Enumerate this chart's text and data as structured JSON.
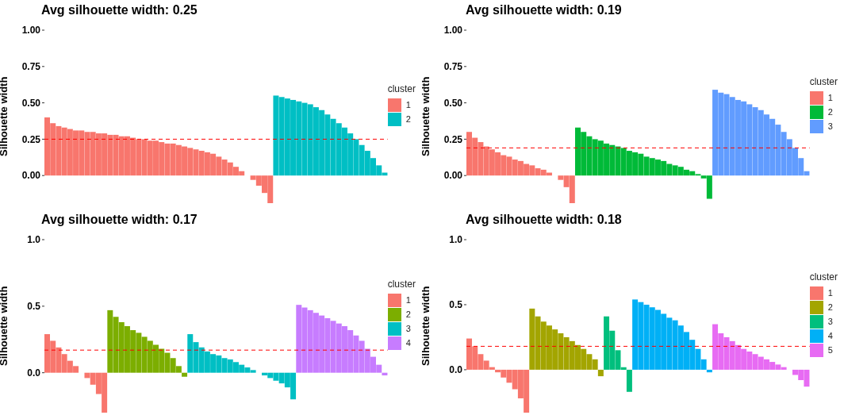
{
  "chart_data": [
    {
      "type": "bar",
      "title": "Avg silhouette width: 0.25",
      "ylabel": "Silhouette width",
      "legend_title": "cluster",
      "legend": "right",
      "tick_labels": "y",
      "categories": [
        null,
        null,
        null,
        null,
        null,
        null,
        null,
        null,
        null,
        null,
        null,
        null,
        null,
        null,
        null,
        null,
        null,
        null,
        null,
        null,
        null,
        null,
        null,
        null,
        null,
        null,
        null,
        null,
        null,
        null,
        null,
        null,
        null,
        null,
        null,
        null,
        null,
        null,
        null,
        null,
        null,
        null,
        null,
        null,
        null,
        null,
        null,
        null,
        null,
        null,
        null,
        null,
        null,
        null,
        null,
        null,
        null,
        null,
        null,
        null
      ],
      "ylim": [
        -0.19,
        1.0
      ],
      "yticks": [
        {
          "value": 0,
          "label": "0.00"
        },
        {
          "value": 0.25,
          "label": "0.25"
        },
        {
          "value": 0.5,
          "label": "0.50"
        },
        {
          "value": 0.75,
          "label": "0.75"
        },
        {
          "value": 1,
          "label": "1.00"
        }
      ],
      "ref_lines": [
        {
          "axis": "y",
          "value": 0.25,
          "color": "#ff0000",
          "line_style": "dashed"
        }
      ],
      "series": [
        {
          "name": "1",
          "color": "#f8766d",
          "values": [
            0.4,
            0.36,
            0.34,
            0.33,
            0.32,
            0.31,
            0.31,
            0.3,
            0.3,
            0.29,
            0.29,
            0.28,
            0.28,
            0.27,
            0.27,
            0.26,
            0.25,
            0.25,
            0.24,
            0.24,
            0.23,
            0.22,
            0.22,
            0.21,
            0.2,
            0.19,
            0.18,
            0.17,
            0.16,
            0.15,
            0.13,
            0.11,
            0.09,
            0.06,
            0.03,
            0.0,
            -0.03,
            -0.07,
            -0.12,
            -0.19,
            null,
            null,
            null,
            null,
            null,
            null,
            null,
            null,
            null,
            null,
            null,
            null,
            null,
            null,
            null,
            null,
            null,
            null,
            null,
            null
          ]
        },
        {
          "name": "2",
          "color": "#00bfc4",
          "values": [
            null,
            null,
            null,
            null,
            null,
            null,
            null,
            null,
            null,
            null,
            null,
            null,
            null,
            null,
            null,
            null,
            null,
            null,
            null,
            null,
            null,
            null,
            null,
            null,
            null,
            null,
            null,
            null,
            null,
            null,
            null,
            null,
            null,
            null,
            null,
            null,
            null,
            null,
            null,
            null,
            0.55,
            0.54,
            0.53,
            0.52,
            0.51,
            0.5,
            0.49,
            0.47,
            0.45,
            0.42,
            0.39,
            0.36,
            0.33,
            0.29,
            0.25,
            0.21,
            0.17,
            0.12,
            0.07,
            0.02
          ]
        }
      ]
    },
    {
      "type": "bar",
      "title": "Avg silhouette width: 0.19",
      "ylabel": "Silhouette width",
      "legend_title": "cluster",
      "legend": "right",
      "tick_labels": "y",
      "categories": [
        null,
        null,
        null,
        null,
        null,
        null,
        null,
        null,
        null,
        null,
        null,
        null,
        null,
        null,
        null,
        null,
        null,
        null,
        null,
        null,
        null,
        null,
        null,
        null,
        null,
        null,
        null,
        null,
        null,
        null,
        null,
        null,
        null,
        null,
        null,
        null,
        null,
        null,
        null,
        null,
        null,
        null,
        null,
        null,
        null,
        null,
        null,
        null,
        null,
        null,
        null,
        null,
        null,
        null,
        null,
        null,
        null,
        null,
        null,
        null
      ],
      "ylim": [
        -0.19,
        1.0
      ],
      "yticks": [
        {
          "value": 0,
          "label": "0.00"
        },
        {
          "value": 0.25,
          "label": "0.25"
        },
        {
          "value": 0.5,
          "label": "0.50"
        },
        {
          "value": 0.75,
          "label": "0.75"
        },
        {
          "value": 1,
          "label": "1.00"
        }
      ],
      "ref_lines": [
        {
          "axis": "y",
          "value": 0.19,
          "color": "#ff0000",
          "line_style": "dashed"
        }
      ],
      "series": [
        {
          "name": "1",
          "color": "#f8766d",
          "values": [
            0.3,
            0.26,
            0.23,
            0.2,
            0.18,
            0.16,
            0.14,
            0.13,
            0.11,
            0.1,
            0.08,
            0.07,
            0.05,
            0.04,
            0.02,
            0.0,
            -0.03,
            -0.08,
            -0.19,
            null,
            null,
            null,
            null,
            null,
            null,
            null,
            null,
            null,
            null,
            null,
            null,
            null,
            null,
            null,
            null,
            null,
            null,
            null,
            null,
            null,
            null,
            null,
            null,
            null,
            null,
            null,
            null,
            null,
            null,
            null,
            null,
            null,
            null,
            null,
            null,
            null,
            null,
            null,
            null,
            null
          ]
        },
        {
          "name": "2",
          "color": "#00ba38",
          "values": [
            null,
            null,
            null,
            null,
            null,
            null,
            null,
            null,
            null,
            null,
            null,
            null,
            null,
            null,
            null,
            null,
            null,
            null,
            null,
            0.33,
            0.3,
            0.27,
            0.25,
            0.24,
            0.22,
            0.21,
            0.2,
            0.19,
            0.17,
            0.16,
            0.15,
            0.13,
            0.12,
            0.11,
            0.1,
            0.08,
            0.07,
            0.06,
            0.04,
            0.03,
            0.01,
            -0.02,
            -0.16,
            null,
            null,
            null,
            null,
            null,
            null,
            null,
            null,
            null,
            null,
            null,
            null,
            null,
            null,
            null,
            null,
            null
          ]
        },
        {
          "name": "3",
          "color": "#619cff",
          "values": [
            null,
            null,
            null,
            null,
            null,
            null,
            null,
            null,
            null,
            null,
            null,
            null,
            null,
            null,
            null,
            null,
            null,
            null,
            null,
            null,
            null,
            null,
            null,
            null,
            null,
            null,
            null,
            null,
            null,
            null,
            null,
            null,
            null,
            null,
            null,
            null,
            null,
            null,
            null,
            null,
            null,
            null,
            null,
            0.59,
            0.57,
            0.56,
            0.54,
            0.52,
            0.51,
            0.49,
            0.47,
            0.45,
            0.42,
            0.39,
            0.35,
            0.3,
            0.25,
            0.19,
            0.12,
            0.03
          ]
        }
      ]
    },
    {
      "type": "bar",
      "title": "Avg silhouette width: 0.17",
      "ylabel": "Silhouette width",
      "legend_title": "cluster",
      "legend": "right",
      "tick_labels": "y",
      "categories": [
        null,
        null,
        null,
        null,
        null,
        null,
        null,
        null,
        null,
        null,
        null,
        null,
        null,
        null,
        null,
        null,
        null,
        null,
        null,
        null,
        null,
        null,
        null,
        null,
        null,
        null,
        null,
        null,
        null,
        null,
        null,
        null,
        null,
        null,
        null,
        null,
        null,
        null,
        null,
        null,
        null,
        null,
        null,
        null,
        null,
        null,
        null,
        null,
        null,
        null,
        null,
        null,
        null,
        null,
        null,
        null,
        null,
        null,
        null,
        null
      ],
      "ylim": [
        -0.3,
        1.0
      ],
      "yticks": [
        {
          "value": 0,
          "label": "0.0"
        },
        {
          "value": 0.5,
          "label": "0.5"
        },
        {
          "value": 1,
          "label": "1.0"
        }
      ],
      "ref_lines": [
        {
          "axis": "y",
          "value": 0.17,
          "color": "#ff0000",
          "line_style": "dashed"
        }
      ],
      "series": [
        {
          "name": "1",
          "color": "#f8766d",
          "values": [
            0.29,
            0.24,
            0.19,
            0.14,
            0.09,
            0.05,
            0.0,
            -0.04,
            -0.09,
            -0.16,
            -0.3,
            null,
            null,
            null,
            null,
            null,
            null,
            null,
            null,
            null,
            null,
            null,
            null,
            null,
            null,
            null,
            null,
            null,
            null,
            null,
            null,
            null,
            null,
            null,
            null,
            null,
            null,
            null,
            null,
            null,
            null,
            null,
            null,
            null,
            null,
            null,
            null,
            null,
            null,
            null,
            null,
            null,
            null,
            null,
            null,
            null,
            null,
            null,
            null,
            null
          ]
        },
        {
          "name": "2",
          "color": "#7cae00",
          "values": [
            null,
            null,
            null,
            null,
            null,
            null,
            null,
            null,
            null,
            null,
            null,
            0.47,
            0.42,
            0.38,
            0.35,
            0.32,
            0.3,
            0.27,
            0.24,
            0.21,
            0.18,
            0.15,
            0.11,
            0.05,
            -0.03,
            null,
            null,
            null,
            null,
            null,
            null,
            null,
            null,
            null,
            null,
            null,
            null,
            null,
            null,
            null,
            null,
            null,
            null,
            null,
            null,
            null,
            null,
            null,
            null,
            null,
            null,
            null,
            null,
            null,
            null,
            null,
            null,
            null,
            null,
            null
          ]
        },
        {
          "name": "3",
          "color": "#00bfc4",
          "values": [
            null,
            null,
            null,
            null,
            null,
            null,
            null,
            null,
            null,
            null,
            null,
            null,
            null,
            null,
            null,
            null,
            null,
            null,
            null,
            null,
            null,
            null,
            null,
            null,
            null,
            0.29,
            0.23,
            0.19,
            0.16,
            0.14,
            0.13,
            0.11,
            0.1,
            0.08,
            0.06,
            0.04,
            0.02,
            0.0,
            -0.02,
            -0.04,
            -0.06,
            -0.08,
            -0.11,
            -0.2,
            null,
            null,
            null,
            null,
            null,
            null,
            null,
            null,
            null,
            null,
            null,
            null,
            null,
            null,
            null,
            null
          ]
        },
        {
          "name": "4",
          "color": "#c77cff",
          "values": [
            null,
            null,
            null,
            null,
            null,
            null,
            null,
            null,
            null,
            null,
            null,
            null,
            null,
            null,
            null,
            null,
            null,
            null,
            null,
            null,
            null,
            null,
            null,
            null,
            null,
            null,
            null,
            null,
            null,
            null,
            null,
            null,
            null,
            null,
            null,
            null,
            null,
            null,
            null,
            null,
            null,
            null,
            null,
            null,
            0.51,
            0.49,
            0.47,
            0.45,
            0.43,
            0.41,
            0.39,
            0.37,
            0.35,
            0.32,
            0.28,
            0.24,
            0.18,
            0.12,
            0.06,
            -0.02
          ]
        }
      ]
    },
    {
      "type": "bar",
      "title": "Avg silhouette width: 0.18",
      "ylabel": "Silhouette width",
      "legend_title": "cluster",
      "legend": "right",
      "tick_labels": "y",
      "categories": [
        null,
        null,
        null,
        null,
        null,
        null,
        null,
        null,
        null,
        null,
        null,
        null,
        null,
        null,
        null,
        null,
        null,
        null,
        null,
        null,
        null,
        null,
        null,
        null,
        null,
        null,
        null,
        null,
        null,
        null,
        null,
        null,
        null,
        null,
        null,
        null,
        null,
        null,
        null,
        null,
        null,
        null,
        null,
        null,
        null,
        null,
        null,
        null,
        null,
        null,
        null,
        null,
        null,
        null,
        null,
        null,
        null,
        null,
        null,
        null
      ],
      "ylim": [
        -0.33,
        1.0
      ],
      "yticks": [
        {
          "value": 0,
          "label": "0.0"
        },
        {
          "value": 0.5,
          "label": "0.5"
        },
        {
          "value": 1,
          "label": "1.0"
        }
      ],
      "ref_lines": [
        {
          "axis": "y",
          "value": 0.18,
          "color": "#ff0000",
          "line_style": "dashed"
        }
      ],
      "series": [
        {
          "name": "1",
          "color": "#f8766d",
          "values": [
            0.24,
            0.18,
            0.12,
            0.07,
            0.02,
            -0.02,
            -0.06,
            -0.1,
            -0.15,
            -0.22,
            -0.33,
            null,
            null,
            null,
            null,
            null,
            null,
            null,
            null,
            null,
            null,
            null,
            null,
            null,
            null,
            null,
            null,
            null,
            null,
            null,
            null,
            null,
            null,
            null,
            null,
            null,
            null,
            null,
            null,
            null,
            null,
            null,
            null,
            null,
            null,
            null,
            null,
            null,
            null,
            null,
            null,
            null,
            null,
            null,
            null,
            null,
            null,
            null,
            null,
            null
          ]
        },
        {
          "name": "2",
          "color": "#a3a500",
          "values": [
            null,
            null,
            null,
            null,
            null,
            null,
            null,
            null,
            null,
            null,
            null,
            0.47,
            0.41,
            0.37,
            0.34,
            0.31,
            0.28,
            0.25,
            0.22,
            0.19,
            0.16,
            0.12,
            0.08,
            -0.05,
            null,
            null,
            null,
            null,
            null,
            null,
            null,
            null,
            null,
            null,
            null,
            null,
            null,
            null,
            null,
            null,
            null,
            null,
            null,
            null,
            null,
            null,
            null,
            null,
            null,
            null,
            null,
            null,
            null,
            null,
            null,
            null,
            null,
            null,
            null,
            null
          ]
        },
        {
          "name": "3",
          "color": "#00bf7d",
          "values": [
            null,
            null,
            null,
            null,
            null,
            null,
            null,
            null,
            null,
            null,
            null,
            null,
            null,
            null,
            null,
            null,
            null,
            null,
            null,
            null,
            null,
            null,
            null,
            null,
            0.41,
            0.3,
            0.15,
            0.02,
            -0.17,
            null,
            null,
            null,
            null,
            null,
            null,
            null,
            null,
            null,
            null,
            null,
            null,
            null,
            null,
            null,
            null,
            null,
            null,
            null,
            null,
            null,
            null,
            null,
            null,
            null,
            null,
            null,
            null,
            null,
            null,
            null
          ]
        },
        {
          "name": "4",
          "color": "#00b0f6",
          "values": [
            null,
            null,
            null,
            null,
            null,
            null,
            null,
            null,
            null,
            null,
            null,
            null,
            null,
            null,
            null,
            null,
            null,
            null,
            null,
            null,
            null,
            null,
            null,
            null,
            null,
            null,
            null,
            null,
            null,
            0.54,
            0.52,
            0.5,
            0.48,
            0.46,
            0.43,
            0.4,
            0.38,
            0.34,
            0.29,
            0.23,
            0.16,
            0.08,
            -0.02,
            null,
            null,
            null,
            null,
            null,
            null,
            null,
            null,
            null,
            null,
            null,
            null,
            null,
            null,
            null,
            null,
            null
          ]
        },
        {
          "name": "5",
          "color": "#e76bf3",
          "values": [
            null,
            null,
            null,
            null,
            null,
            null,
            null,
            null,
            null,
            null,
            null,
            null,
            null,
            null,
            null,
            null,
            null,
            null,
            null,
            null,
            null,
            null,
            null,
            null,
            null,
            null,
            null,
            null,
            null,
            null,
            null,
            null,
            null,
            null,
            null,
            null,
            null,
            null,
            null,
            null,
            null,
            null,
            null,
            0.35,
            0.28,
            0.25,
            0.22,
            0.19,
            0.16,
            0.14,
            0.12,
            0.1,
            0.08,
            0.06,
            0.04,
            0.02,
            0.0,
            -0.04,
            -0.08,
            -0.13
          ]
        }
      ]
    }
  ]
}
